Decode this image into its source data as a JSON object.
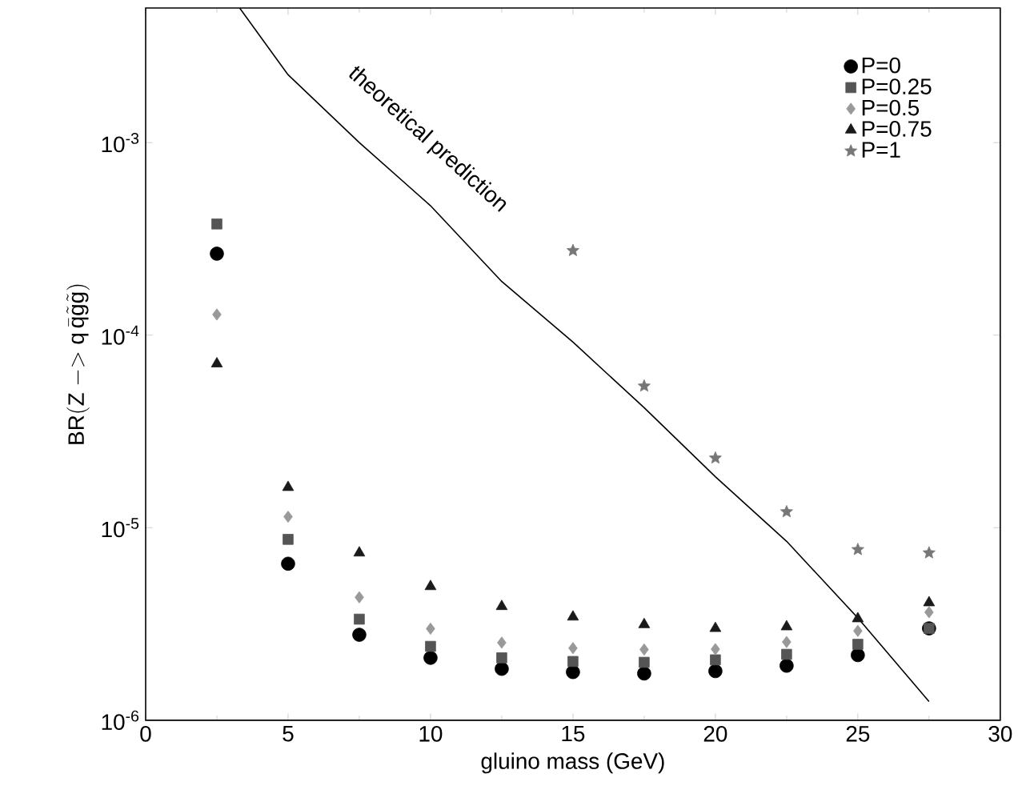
{
  "chart_data": {
    "type": "scatter",
    "xlabel": "gluino mass  (GeV)",
    "ylabel": "\\mathrm{BR(Z\\ {-}{>}\\ q}\\,\\bar{\\mathrm{q}}\\tilde{\\mathrm{g}}\\tilde{\\mathrm{g}}\\mathrm{)}",
    "xlim": [
      0,
      30
    ],
    "xticks": [
      0,
      5,
      10,
      15,
      20,
      25,
      30
    ],
    "ylim": [
      1e-06,
      0.005
    ],
    "yticks": [
      {
        "value": 1e-06,
        "label": "10$^{-6}$"
      },
      {
        "value": 1e-05,
        "label": "10$^{-5}$"
      },
      {
        "value": 0.0001,
        "label": "10$^{-4}$"
      },
      {
        "value": 0.001,
        "label": "10$^{-3}$"
      }
    ],
    "log": "y",
    "grid": false,
    "legend": "top right",
    "x": [
      2.5,
      5,
      7.5,
      10,
      12.5,
      15,
      17.5,
      20,
      22.5,
      25,
      27.5
    ],
    "series": [
      {
        "name": "P=0",
        "color": "#000000",
        "marker": "circle",
        "values": [
          0.000265,
          6.5e-06,
          2.78e-06,
          2.11e-06,
          1.85e-06,
          1.78e-06,
          1.75e-06,
          1.8e-06,
          1.92e-06,
          2.18e-06,
          3e-06
        ]
      },
      {
        "name": "P=0.25",
        "color": "#555555",
        "marker": "square",
        "values": [
          0.000378,
          8.7e-06,
          3.35e-06,
          2.42e-06,
          2.11e-06,
          2.02e-06,
          2e-06,
          2.06e-06,
          2.2e-06,
          2.48e-06,
          3e-06
        ]
      },
      {
        "name": "P=0.5",
        "color": "#999999",
        "marker": "diamond",
        "values": [
          0.000128,
          1.14e-05,
          4.35e-06,
          2.99e-06,
          2.53e-06,
          2.37e-06,
          2.33e-06,
          2.34e-06,
          2.55e-06,
          2.91e-06,
          3.64e-06
        ]
      },
      {
        "name": "P=0.75",
        "color": "#1a1a1a",
        "marker": "triangle",
        "values": [
          7.1e-05,
          1.62e-05,
          7.4e-06,
          4.95e-06,
          3.9e-06,
          3.44e-06,
          3.14e-06,
          3e-06,
          3.06e-06,
          3.37e-06,
          4.08e-06
        ]
      },
      {
        "name": "P=1",
        "color": "#777777",
        "marker": "star",
        "x": [
          15,
          17.5,
          20,
          22.5,
          25,
          27.5
        ],
        "values": [
          0.000275,
          5.44e-05,
          2.3e-05,
          1.21e-05,
          7.7e-06,
          7.4e-06
        ]
      },
      {
        "type": "line",
        "color": "#000000",
        "marker": "none",
        "line_style": "solid",
        "x": [
          3.3,
          5,
          7.5,
          10,
          12.5,
          15,
          17.5,
          20,
          22.5,
          25,
          27.5
        ],
        "values": [
          0.005,
          0.00225,
          0.001,
          0.00047,
          0.00019,
          9.2e-05,
          4.2e-05,
          1.84e-05,
          8.5e-06,
          3.4e-06,
          1.25e-06
        ]
      }
    ],
    "annotations": [
      "theoretical prediction"
    ]
  }
}
